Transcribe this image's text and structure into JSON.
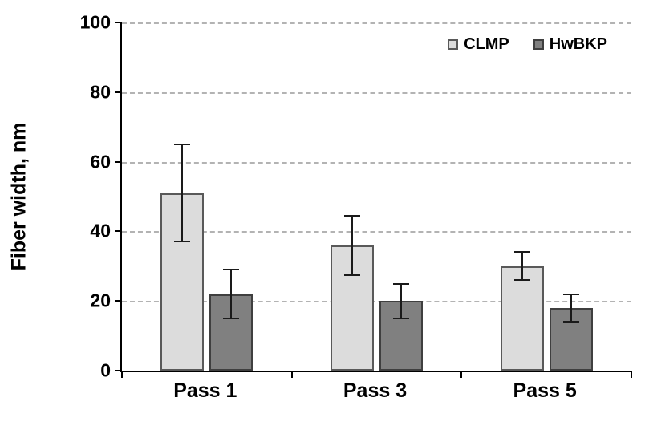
{
  "chart_data": {
    "type": "bar",
    "title": "",
    "xlabel": "",
    "ylabel": "Fiber width, nm",
    "ylim": [
      0,
      100
    ],
    "yticks": [
      0,
      20,
      40,
      60,
      80,
      100
    ],
    "grid": "horizontal-dashed",
    "legend_position": "top-right-inside",
    "categories": [
      "Pass 1",
      "Pass 3",
      "Pass 5"
    ],
    "series": [
      {
        "name": "CLMP",
        "values": [
          51,
          36,
          30
        ],
        "errors": [
          14,
          8.5,
          4
        ],
        "color": "#dcdcdc",
        "border": "#595959"
      },
      {
        "name": "HwBKP",
        "values": [
          22,
          20,
          18
        ],
        "errors": [
          7,
          5,
          4
        ],
        "color": "#808080",
        "border": "#3f3f3f"
      }
    ]
  }
}
